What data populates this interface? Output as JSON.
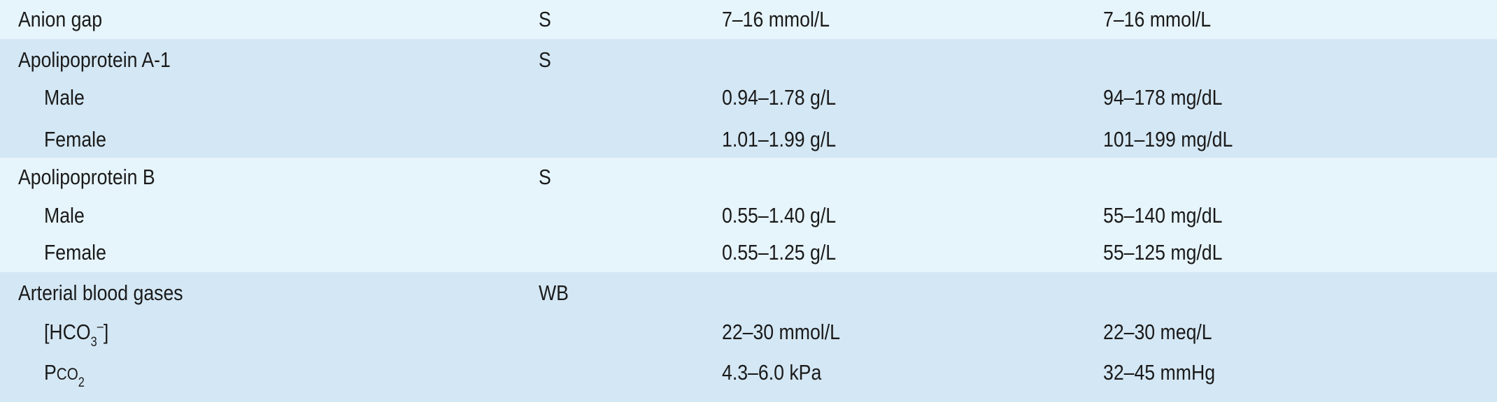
{
  "groups": [
    {
      "rows": [
        {
          "name": "Anion gap",
          "specimen": "S",
          "si": "7–16 mmol/L",
          "conventional": "7–16 mmol/L"
        }
      ]
    },
    {
      "rows": [
        {
          "name": "Apolipoprotein A-1",
          "specimen": "S",
          "si": "",
          "conventional": ""
        },
        {
          "name": "Male",
          "specimen": "",
          "si": "0.94–1.78 g/L",
          "conventional": "94–178 mg/dL"
        },
        {
          "name": "Female",
          "specimen": "",
          "si": "1.01–1.99 g/L",
          "conventional": "101–199 mg/dL"
        }
      ]
    },
    {
      "rows": [
        {
          "name": "Apolipoprotein B",
          "specimen": "S",
          "si": "",
          "conventional": ""
        },
        {
          "name": "Male",
          "specimen": "",
          "si": "0.55–1.40 g/L",
          "conventional": "55–140 mg/dL"
        },
        {
          "name": "Female",
          "specimen": "",
          "si": "0.55–1.25 g/L",
          "conventional": "55–125 mg/dL"
        }
      ]
    },
    {
      "rows": [
        {
          "name": "Arterial blood gases",
          "specimen": "WB",
          "si": "",
          "conventional": ""
        },
        {
          "name_pre": "[HCO",
          "name_sub": "3",
          "name_sup": "–",
          "name_post": "]",
          "specimen": "",
          "si": "22–30 mmol/L",
          "conventional": "22–30 meq/L"
        },
        {
          "name_pre": "P",
          "name_small": "CO",
          "name_sub": "2",
          "specimen": "",
          "si": "4.3–6.0 kPa",
          "conventional": "32–45 mmHg"
        }
      ]
    }
  ],
  "colors": {
    "light_band": "#e6f4fb",
    "dark_band": "#d4e7f4",
    "text": "#1a1a1a"
  }
}
